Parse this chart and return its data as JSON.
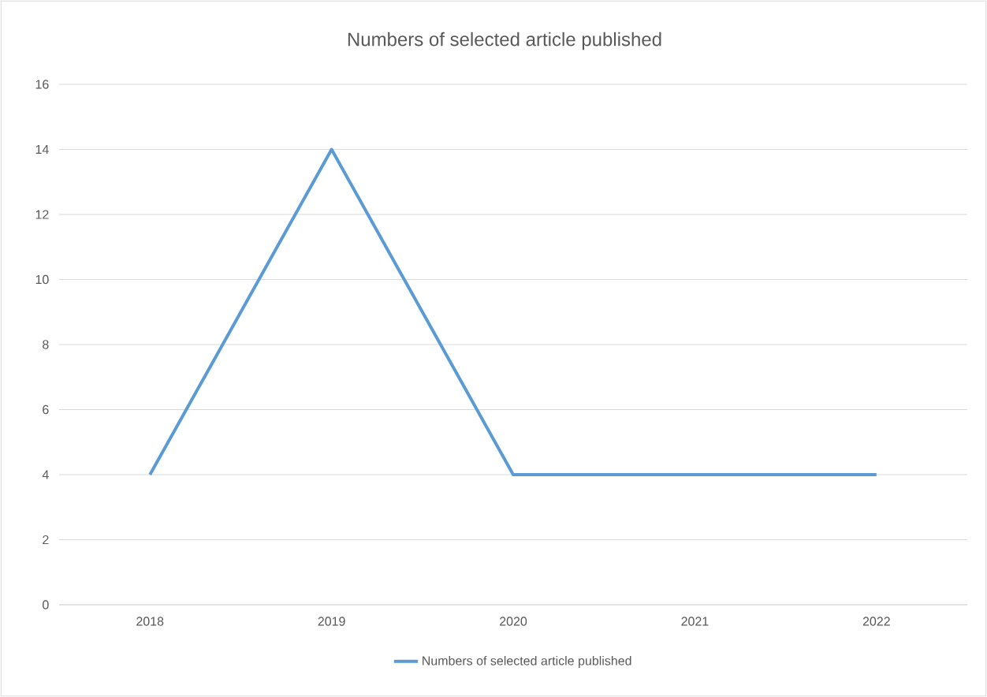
{
  "chart_data": {
    "type": "line",
    "title": "Numbers of selected article published",
    "categories": [
      "2018",
      "2019",
      "2020",
      "2021",
      "2022"
    ],
    "series": [
      {
        "name": "Numbers of selected article published",
        "color": "#5b9bd5",
        "values": [
          4,
          14,
          4,
          4,
          4
        ]
      }
    ],
    "ylim": [
      0,
      16
    ],
    "yticks": [
      0,
      2,
      4,
      6,
      8,
      10,
      12,
      14,
      16
    ],
    "grid": "y",
    "legend": "bottom"
  }
}
